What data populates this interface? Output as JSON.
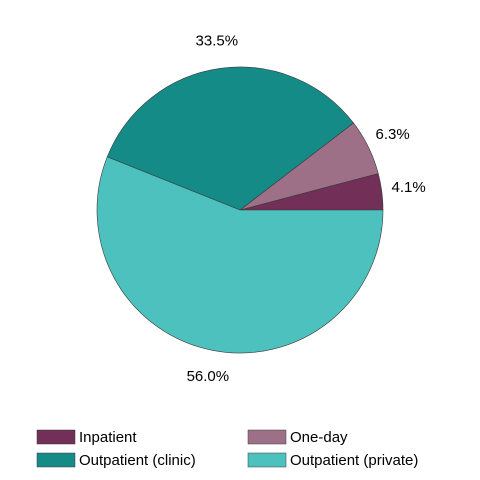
{
  "chart_data": {
    "type": "pie",
    "categories": [
      "Inpatient",
      "One-day",
      "Outpatient (clinic)",
      "Outpatient (private)"
    ],
    "values": [
      4.1,
      6.3,
      33.5,
      56.0
    ],
    "value_labels": [
      "4.1%",
      "6.3%",
      "33.5%",
      "56.0%"
    ],
    "colors": [
      "#722f57",
      "#9e7088",
      "#148b86",
      "#4dc1bd"
    ],
    "legend": "bottom"
  }
}
